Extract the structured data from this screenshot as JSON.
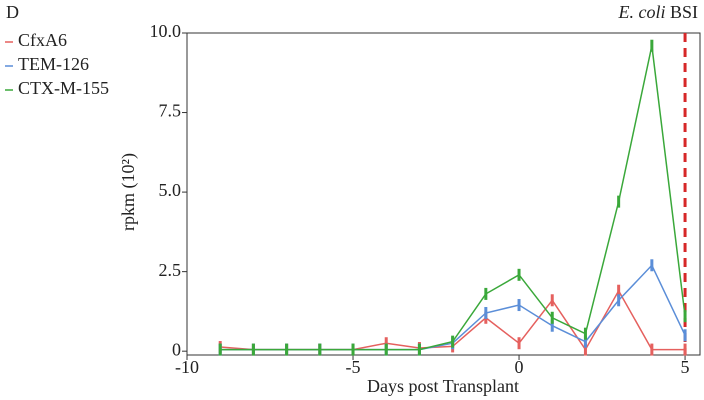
{
  "chart_data": {
    "type": "line",
    "panel": "D",
    "xlabel": "Days post Transplant",
    "ylabel": "rpkm (10²)",
    "x": [
      -9,
      -8,
      -7,
      -6,
      -5,
      -4,
      -3,
      -2,
      -1,
      0,
      1,
      2,
      3,
      4,
      5
    ],
    "series": [
      {
        "name": "CfxA6",
        "color": "#e5605e",
        "values": [
          0.13,
          0.05,
          0.05,
          0.05,
          0.05,
          0.25,
          0.1,
          0.15,
          1.05,
          0.25,
          1.6,
          0.05,
          1.9,
          0.05,
          0.05
        ]
      },
      {
        "name": "TEM-126",
        "color": "#5b8ed8",
        "values": [
          0.05,
          0.05,
          0.05,
          0.05,
          0.05,
          0.05,
          0.05,
          0.25,
          1.2,
          1.45,
          0.8,
          0.3,
          1.6,
          2.7,
          0.5
        ]
      },
      {
        "name": "CTX-M-155",
        "color": "#3aa83a",
        "values": [
          0.05,
          0.05,
          0.05,
          0.05,
          0.05,
          0.05,
          0.05,
          0.3,
          1.8,
          2.4,
          1.05,
          0.55,
          4.7,
          9.6,
          1.1
        ]
      }
    ],
    "xlim": [
      -10,
      5.45
    ],
    "xticks": [
      -10,
      -5,
      0,
      5
    ],
    "ylim": [
      -0.12,
      10
    ],
    "yticks": [
      0,
      {
        "value": 2.5,
        "label": "2.5"
      },
      {
        "value": 5,
        "label": "5.0"
      },
      {
        "value": 7.5,
        "label": "7.5"
      },
      {
        "value": 10,
        "label": "10.0"
      }
    ],
    "vline": {
      "x": 5,
      "color": "#d62728",
      "label": [
        "E. coli",
        "BSI"
      ]
    }
  }
}
